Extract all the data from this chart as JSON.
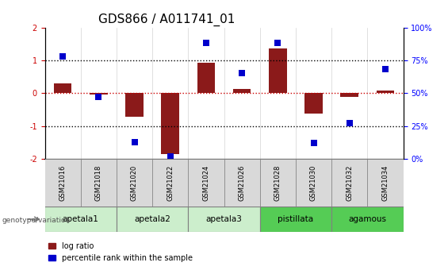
{
  "title": "GDS866 / A011741_01",
  "samples": [
    "GSM21016",
    "GSM21018",
    "GSM21020",
    "GSM21022",
    "GSM21024",
    "GSM21026",
    "GSM21028",
    "GSM21030",
    "GSM21032",
    "GSM21034"
  ],
  "log_ratio": [
    0.3,
    -0.05,
    -0.72,
    -1.85,
    0.92,
    0.12,
    1.35,
    -0.62,
    -0.12,
    0.07
  ],
  "percentile_rank": [
    78,
    47,
    13,
    2,
    88,
    65,
    88,
    12,
    27,
    68
  ],
  "groups": [
    {
      "label": "apetala1",
      "start": 0,
      "end": 1,
      "color": "#cceecc"
    },
    {
      "label": "apetala2",
      "start": 2,
      "end": 3,
      "color": "#cceecc"
    },
    {
      "label": "apetala3",
      "start": 4,
      "end": 5,
      "color": "#cceecc"
    },
    {
      "label": "pistillata",
      "start": 6,
      "end": 7,
      "color": "#55cc55"
    },
    {
      "label": "agamous",
      "start": 8,
      "end": 9,
      "color": "#55cc55"
    }
  ],
  "ylim_left": [
    -2,
    2
  ],
  "ylim_right": [
    0,
    100
  ],
  "yticks_left": [
    -2,
    -1,
    0,
    1,
    2
  ],
  "yticks_right": [
    0,
    25,
    50,
    75,
    100
  ],
  "ytick_labels_right": [
    "0%",
    "25%",
    "50%",
    "75%",
    "100%"
  ],
  "bar_color": "#8b1a1a",
  "dot_color": "#0000cc",
  "hline_color": "#cc0000",
  "ref_line_color": "black",
  "bar_width": 0.5,
  "dot_size": 30,
  "legend_red_label": "log ratio",
  "legend_blue_label": "percentile rank within the sample",
  "genotype_label": "genotype/variation",
  "title_fontsize": 11,
  "axis_fontsize": 7,
  "tick_fontsize": 6,
  "sample_label_fontsize": 6,
  "group_label_fontsize": 7.5
}
